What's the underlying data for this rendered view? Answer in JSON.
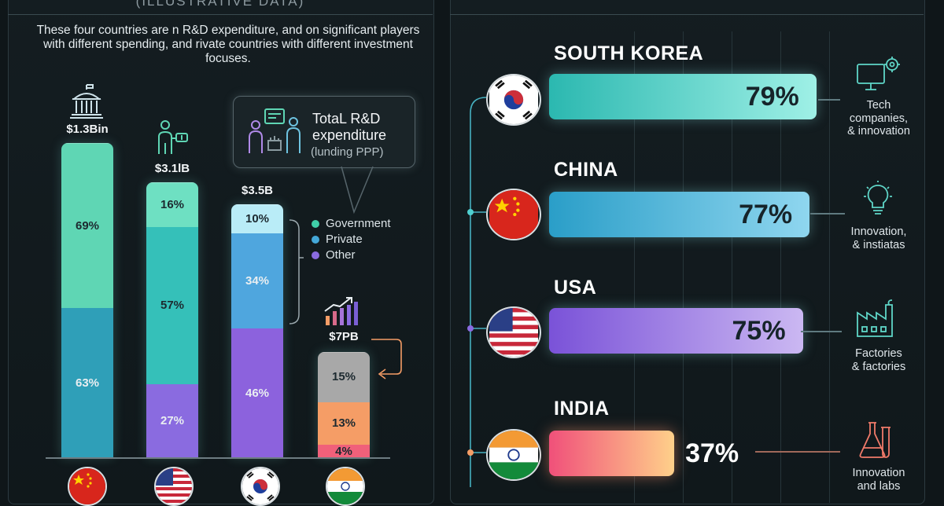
{
  "left_panel": {
    "subtitle": "(ILLUSTRATIVE DATA)",
    "intro": "These four countries are n R&D expenditure, and on significant players with different spending, and rivate countries with different investment focuses.",
    "callout": {
      "title_line1": "TotaL R&D",
      "title_line2": "expenditure",
      "subtitle": "(lunding PPP)"
    },
    "legend": [
      {
        "label": "Government",
        "color": "#3fcfa8"
      },
      {
        "label": "Private",
        "color": "#44a8d8"
      },
      {
        "label": "Other",
        "color": "#8a6be0"
      }
    ]
  },
  "right_panel": {
    "descriptions": [
      {
        "line1": "Tech",
        "line2": "companies,",
        "line3": "& innovation",
        "icon": "computer-gear-icon"
      },
      {
        "line1": "Innovation,",
        "line2": "& instiatas",
        "line3": "",
        "icon": "lightbulb-icon"
      },
      {
        "line1": "Factories",
        "line2": "& factories",
        "line3": "",
        "icon": "factory-icon"
      },
      {
        "line1": "Innovation",
        "line2": "and labs",
        "line3": "",
        "icon": "flask-icon"
      }
    ]
  },
  "chart_data": [
    {
      "type": "bar",
      "stacked": true,
      "categories": [
        "China",
        "USA",
        "South Korea",
        "India"
      ],
      "totals": [
        "$1.3Bin",
        "$3.1lB",
        "$3.5B",
        "$7PB"
      ],
      "stacks": [
        {
          "category": "China",
          "total": "$1.3Bin",
          "segments": [
            {
              "label": "63%",
              "value": 63,
              "color": "#2f9fb8"
            },
            {
              "label": "69%",
              "value": 69,
              "color": "#5fd6b4"
            }
          ]
        },
        {
          "category": "USA",
          "total": "$3.1lB",
          "segments": [
            {
              "label": "27%",
              "value": 27,
              "color": "#8a6be0"
            },
            {
              "label": "57%",
              "value": 57,
              "color": "#35c0b9"
            },
            {
              "label": "16%",
              "value": 16,
              "color": "#6ee0c2"
            }
          ]
        },
        {
          "category": "South Korea",
          "total": "$3.5B",
          "segments": [
            {
              "label": "46%",
              "value": 46,
              "color": "#8c62dd"
            },
            {
              "label": "34%",
              "value": 34,
              "color": "#4fa6de"
            },
            {
              "label": "10%",
              "value": 10,
              "color": "#b9ecf7"
            }
          ]
        },
        {
          "category": "India",
          "total": "$7PB",
          "segments": [
            {
              "label": "4%",
              "value": 4,
              "color": "#f0607a"
            },
            {
              "label": "13%",
              "value": 13,
              "color": "#f59d66"
            },
            {
              "label": "15%",
              "value": 15,
              "color": "#a8a8a8"
            }
          ]
        }
      ]
    },
    {
      "type": "bar",
      "orientation": "horizontal",
      "categories": [
        "SOUTH KOREA",
        "CHINA",
        "USA",
        "INDIA"
      ],
      "values": [
        79,
        77,
        75,
        37
      ],
      "value_labels": [
        "79%",
        "77%",
        "75%",
        "37%"
      ],
      "colors": [
        "#7fe3d9",
        "#4aaed6",
        "#8a6be0",
        "#f4607c"
      ]
    }
  ]
}
